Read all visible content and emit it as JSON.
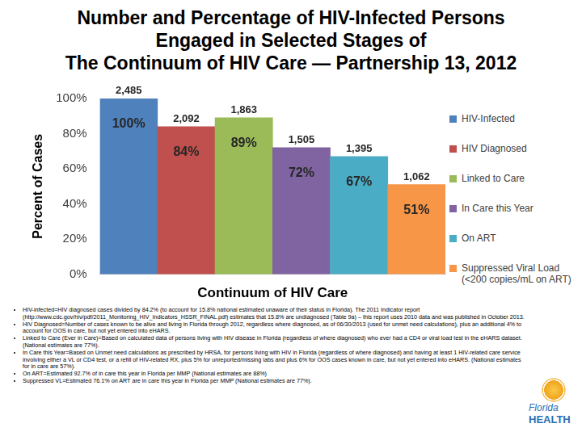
{
  "chart_data": {
    "type": "bar",
    "title": [
      "Number and Percentage of HIV-Infected Persons",
      "Engaged in Selected Stages of",
      "The Continuum of HIV Care — Partnership 13, 2012"
    ],
    "x_label": "Continuum of HIV Care",
    "y_label": "Percent of Cases",
    "categories": [
      "HIV-Infected",
      "HIV Diagnosed",
      "Linked to Care",
      "In Care this Year",
      "On ART",
      "Suppressed Viral Load (<200 copies/mL on ART)"
    ],
    "values": [
      100,
      84,
      89,
      72,
      67,
      51
    ],
    "value_labels": [
      "100%",
      "84%",
      "89%",
      "72%",
      "67%",
      "51%"
    ],
    "counts": [
      2485,
      2092,
      1863,
      1505,
      1395,
      1062
    ],
    "count_labels": [
      "2,485",
      "2,092",
      "1,863",
      "1,505",
      "1,395",
      "1,062"
    ],
    "colors": [
      "#4f81bd",
      "#c0504d",
      "#9bbb59",
      "#8064a2",
      "#4bacc6",
      "#f79646"
    ],
    "ylim": [
      0,
      100
    ],
    "yticks": [
      {
        "value": 0,
        "label": "0%"
      },
      {
        "value": 20,
        "label": "20%"
      },
      {
        "value": 40,
        "label": "40%"
      },
      {
        "value": 60,
        "label": "60%"
      },
      {
        "value": 80,
        "label": "80%"
      },
      {
        "value": 100,
        "label": "100%"
      }
    ],
    "grid": false,
    "legend": "right",
    "data_labels": true,
    "tick_labels": "y",
    "notes": [
      "HIV-infected=HIV diagnosed cases divided by 84.2% (to account for 15.8% national estimated unaware of their status in Florida). The 2011 Indicator report (http://www.cdc.gov/hiv/pdf/2011_Monitoring_HIV_Indicators_HSSR_FINAL.pdf) estimates that 15.8% are undiagnosed (Table 9a) – this report uses 2010 data and was published in October 2013.",
      "HIV Diagnosed=Number of cases known to be alive and living in Florida through 2012, regardless where diagnosed, as of 06/30/2013 (used for unmet need calculations), plus an additional 4% to account for OOS in care, but not yet entered into eHARS.",
      "Linked to Care (Ever in Care)=Based on calculated data of persons living with HIV disease in Florida (regardless of where diagnosed) who ever had a CD4 or viral load test in the eHARS dataset. (National estimates are 77%).",
      "In Care this Year=Based on Unmet need calculations as prescribed by HRSA, for persons living with HIV in Florida (regardless of where diagnosed) and having at least 1 HIV-related care service involving either a VL or CD4 test, or a refill of HIV-related RX, plus 5% for unreported/missing labs and plus 6% for OOS cases known in care, but not yet entered into eHARS. (National estimates for in care are 57%).",
      "On ART=Estimated 92.7% of in care this year in Florida per MMP (National estimates are 88%)",
      "Suppressed VL=Estimated 76.1% on ART are in care this year in Florida per MMP (National estimates are 77%)."
    ],
    "logo": [
      "Florida",
      "HEALTH"
    ]
  }
}
